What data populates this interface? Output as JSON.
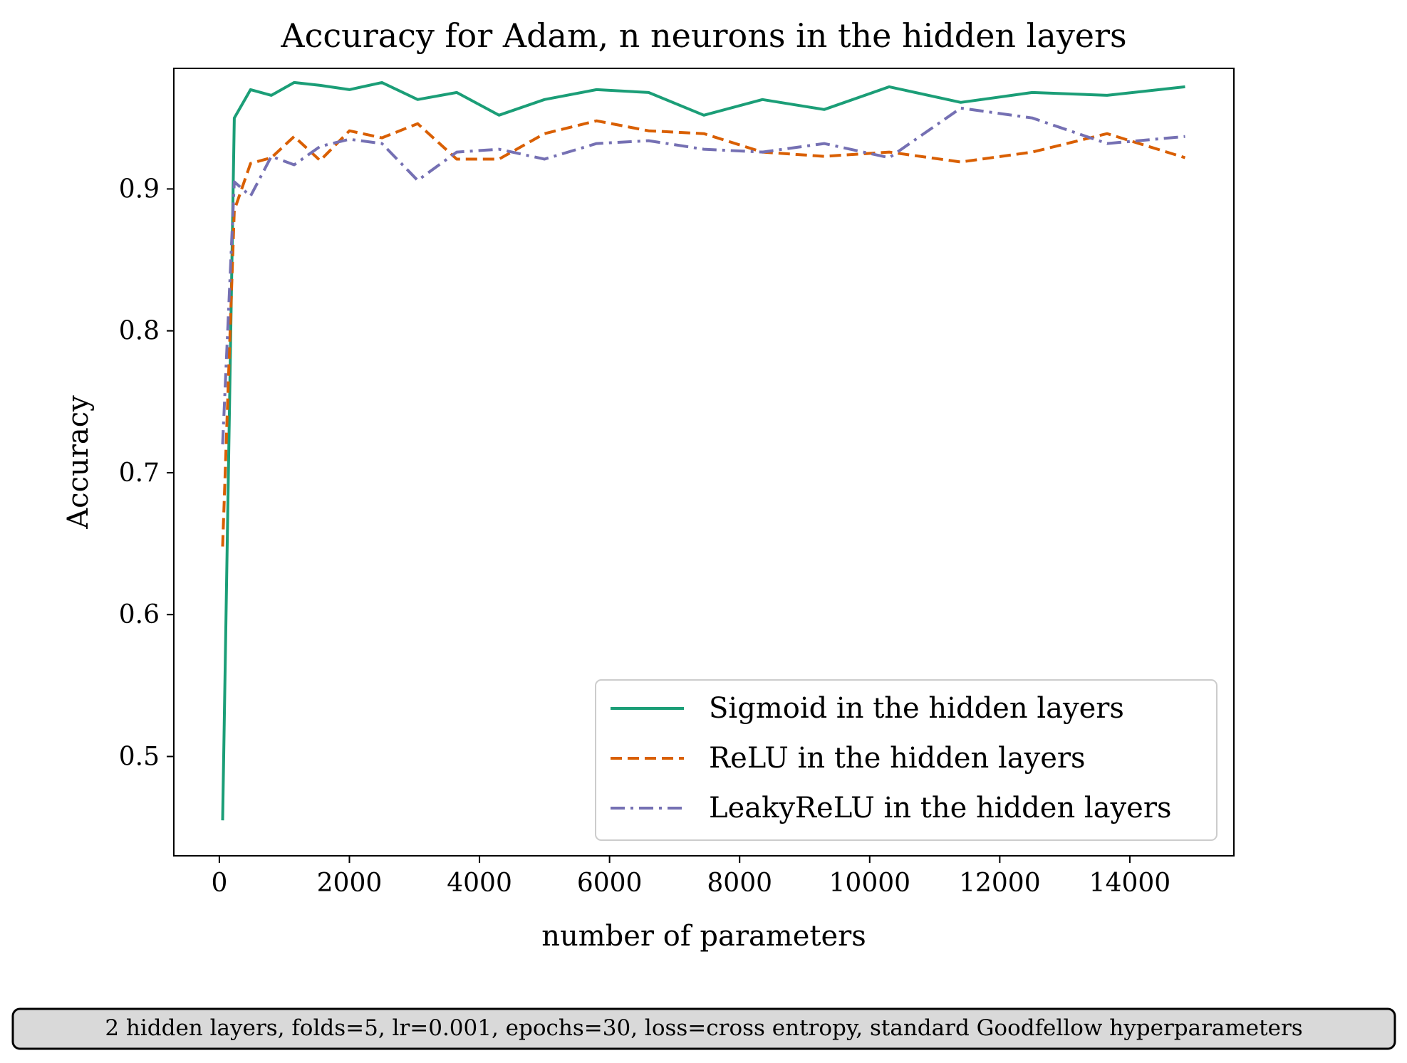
{
  "chart_data": {
    "type": "line",
    "title": "Accuracy for Adam, n neurons in the hidden layers",
    "xlabel": "number of parameters",
    "ylabel": "Accuracy",
    "xlim": [
      -700,
      15600
    ],
    "ylim": [
      0.43,
      0.985
    ],
    "xticks": [
      {
        "value": 0,
        "label": "0"
      },
      {
        "value": 2000,
        "label": "2000"
      },
      {
        "value": 4000,
        "label": "4000"
      },
      {
        "value": 6000,
        "label": "6000"
      },
      {
        "value": 8000,
        "label": "8000"
      },
      {
        "value": 10000,
        "label": "10000"
      },
      {
        "value": 12000,
        "label": "12000"
      },
      {
        "value": 14000,
        "label": "14000"
      }
    ],
    "yticks": [
      {
        "value": 0.5,
        "label": "0.5"
      },
      {
        "value": 0.6,
        "label": "0.6"
      },
      {
        "value": 0.7,
        "label": "0.7"
      },
      {
        "value": 0.8,
        "label": "0.8"
      },
      {
        "value": 0.9,
        "label": "0.9"
      }
    ],
    "grid": false,
    "legend_position": "lower-right",
    "x": [
      50,
      230,
      480,
      800,
      1150,
      1550,
      2000,
      2500,
      3050,
      3650,
      4300,
      5000,
      5800,
      6600,
      7450,
      8350,
      9300,
      10300,
      11400,
      12500,
      13650,
      14850
    ],
    "series": [
      {
        "name": "Sigmoid in the hidden layers",
        "color": "#1b9e77",
        "dash": "solid",
        "values": [
          0.455,
          0.95,
          0.97,
          0.966,
          0.975,
          0.973,
          0.97,
          0.975,
          0.963,
          0.968,
          0.952,
          0.963,
          0.97,
          0.968,
          0.952,
          0.963,
          0.956,
          0.972,
          0.961,
          0.968,
          0.966,
          0.972
        ]
      },
      {
        "name": "ReLU in the hidden layers",
        "color": "#d95f02",
        "dash": "dashed",
        "values": [
          0.648,
          0.885,
          0.918,
          0.922,
          0.937,
          0.92,
          0.941,
          0.936,
          0.946,
          0.921,
          0.921,
          0.939,
          0.948,
          0.941,
          0.939,
          0.926,
          0.923,
          0.926,
          0.919,
          0.926,
          0.939,
          0.922
        ]
      },
      {
        "name": "LeakyReLU in the hidden layers",
        "color": "#7570b3",
        "dash": "dashdot",
        "values": [
          0.72,
          0.905,
          0.895,
          0.923,
          0.917,
          0.93,
          0.935,
          0.932,
          0.906,
          0.926,
          0.928,
          0.921,
          0.932,
          0.934,
          0.928,
          0.926,
          0.932,
          0.922,
          0.957,
          0.95,
          0.932,
          0.937
        ]
      }
    ]
  },
  "annotation": {
    "text": "2 hidden layers, folds=5, lr=0.001, epochs=30, loss=cross entropy, standard Goodfellow hyperparameters"
  }
}
